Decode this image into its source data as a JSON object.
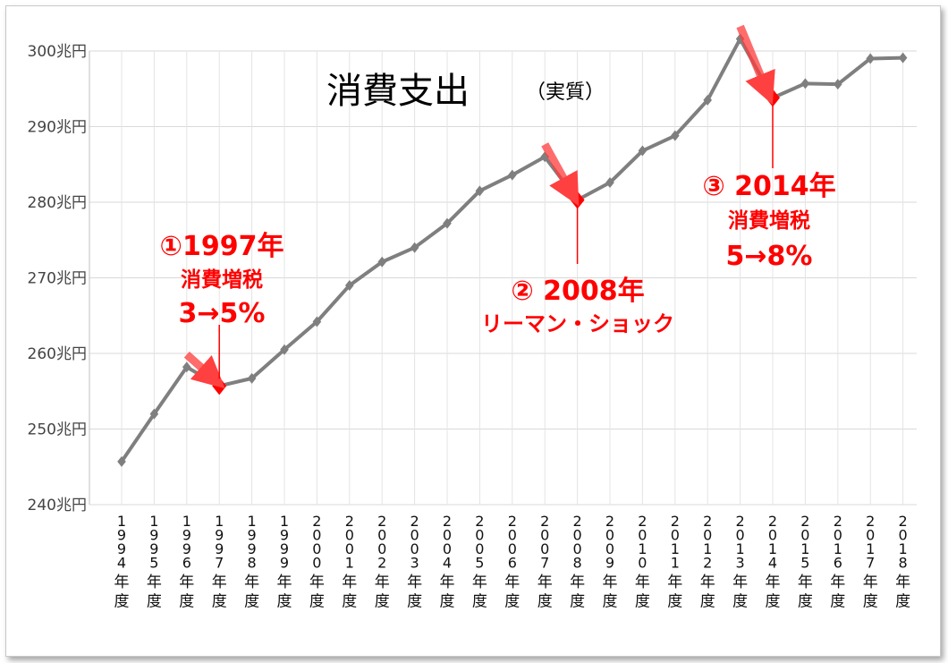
{
  "chart_data": {
    "type": "line",
    "title": "消費支出",
    "subtitle": "（実質）",
    "ylim": [
      240,
      300
    ],
    "yticks": [
      "240兆円",
      "250兆円",
      "260兆円",
      "270兆円",
      "280兆円",
      "290兆円",
      "300兆円"
    ],
    "ytick_values": [
      240,
      250,
      260,
      270,
      280,
      290,
      300
    ],
    "categories": [
      "1994年度",
      "1995年度",
      "1996年度",
      "1997年度",
      "1998年度",
      "1999年度",
      "2000年度",
      "2001年度",
      "2002年度",
      "2003年度",
      "2004年度",
      "2005年度",
      "2006年度",
      "2007年度",
      "2008年度",
      "2009年度",
      "2010年度",
      "2011年度",
      "2012年度",
      "2013年度",
      "2014年度",
      "2015年度",
      "2016年度",
      "2017年度",
      "2018年度"
    ],
    "values": [
      245.7,
      252.0,
      258.2,
      255.7,
      256.7,
      260.5,
      264.2,
      269.0,
      272.1,
      274.0,
      277.2,
      281.5,
      283.6,
      286.0,
      280.3,
      282.6,
      286.8,
      288.8,
      293.5,
      301.6,
      293.8,
      295.7,
      295.6,
      299.0,
      299.1
    ],
    "grid": true,
    "series_color": "#7f7f7f",
    "highlight_color": "#ff0000",
    "annotations": [
      {
        "index": 3,
        "lines": [
          "①1997年",
          "消費増税",
          "3→5%"
        ]
      },
      {
        "index": 14,
        "lines": [
          "② 2008年",
          "リーマン・ショック"
        ]
      },
      {
        "index": 20,
        "lines": [
          "③ 2014年",
          "消費増税",
          "5→8%"
        ]
      }
    ]
  }
}
